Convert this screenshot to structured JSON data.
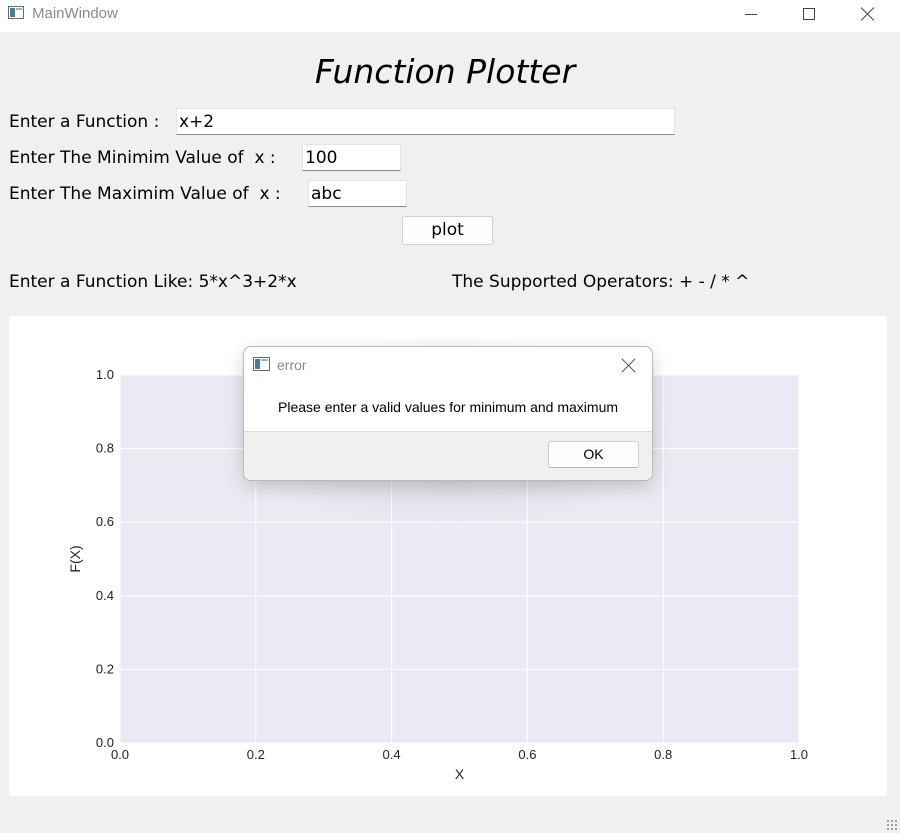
{
  "window": {
    "title": "MainWindow",
    "icon": "app-window-icon",
    "controls": [
      "minimize-icon",
      "maximize-icon",
      "close-icon"
    ]
  },
  "heading": "Function Plotter",
  "form": {
    "function_label": "Enter a Function :",
    "function_value": "x+2",
    "min_label": "Enter The Minimim Value of  x :",
    "min_value": "100",
    "max_label": "Enter The Maximim Value of  x :",
    "max_value": "abc",
    "plot_button": "plot"
  },
  "hints": {
    "example": "Enter a Function Like: 5*x^3+2*x",
    "operators": "The Supported Operators: + - / * ^"
  },
  "chart_data": {
    "type": "line",
    "series": [],
    "title": "",
    "xlabel": "X",
    "ylabel": "F(X)",
    "xlim": [
      0.0,
      1.0
    ],
    "ylim": [
      0.0,
      1.0
    ],
    "xticks": [
      "0.0",
      "0.2",
      "0.4",
      "0.6",
      "0.8",
      "1.0"
    ],
    "yticks": [
      "0.0",
      "0.2",
      "0.4",
      "0.6",
      "0.8",
      "1.0"
    ],
    "grid": true,
    "colors": {
      "plot_background": "#eaeaf2",
      "grid": "#ffffff",
      "figure_background": "#ffffff"
    }
  },
  "dialog": {
    "title": "error",
    "message": "Please enter a valid values for minimum and maximum",
    "ok_button": "OK"
  }
}
